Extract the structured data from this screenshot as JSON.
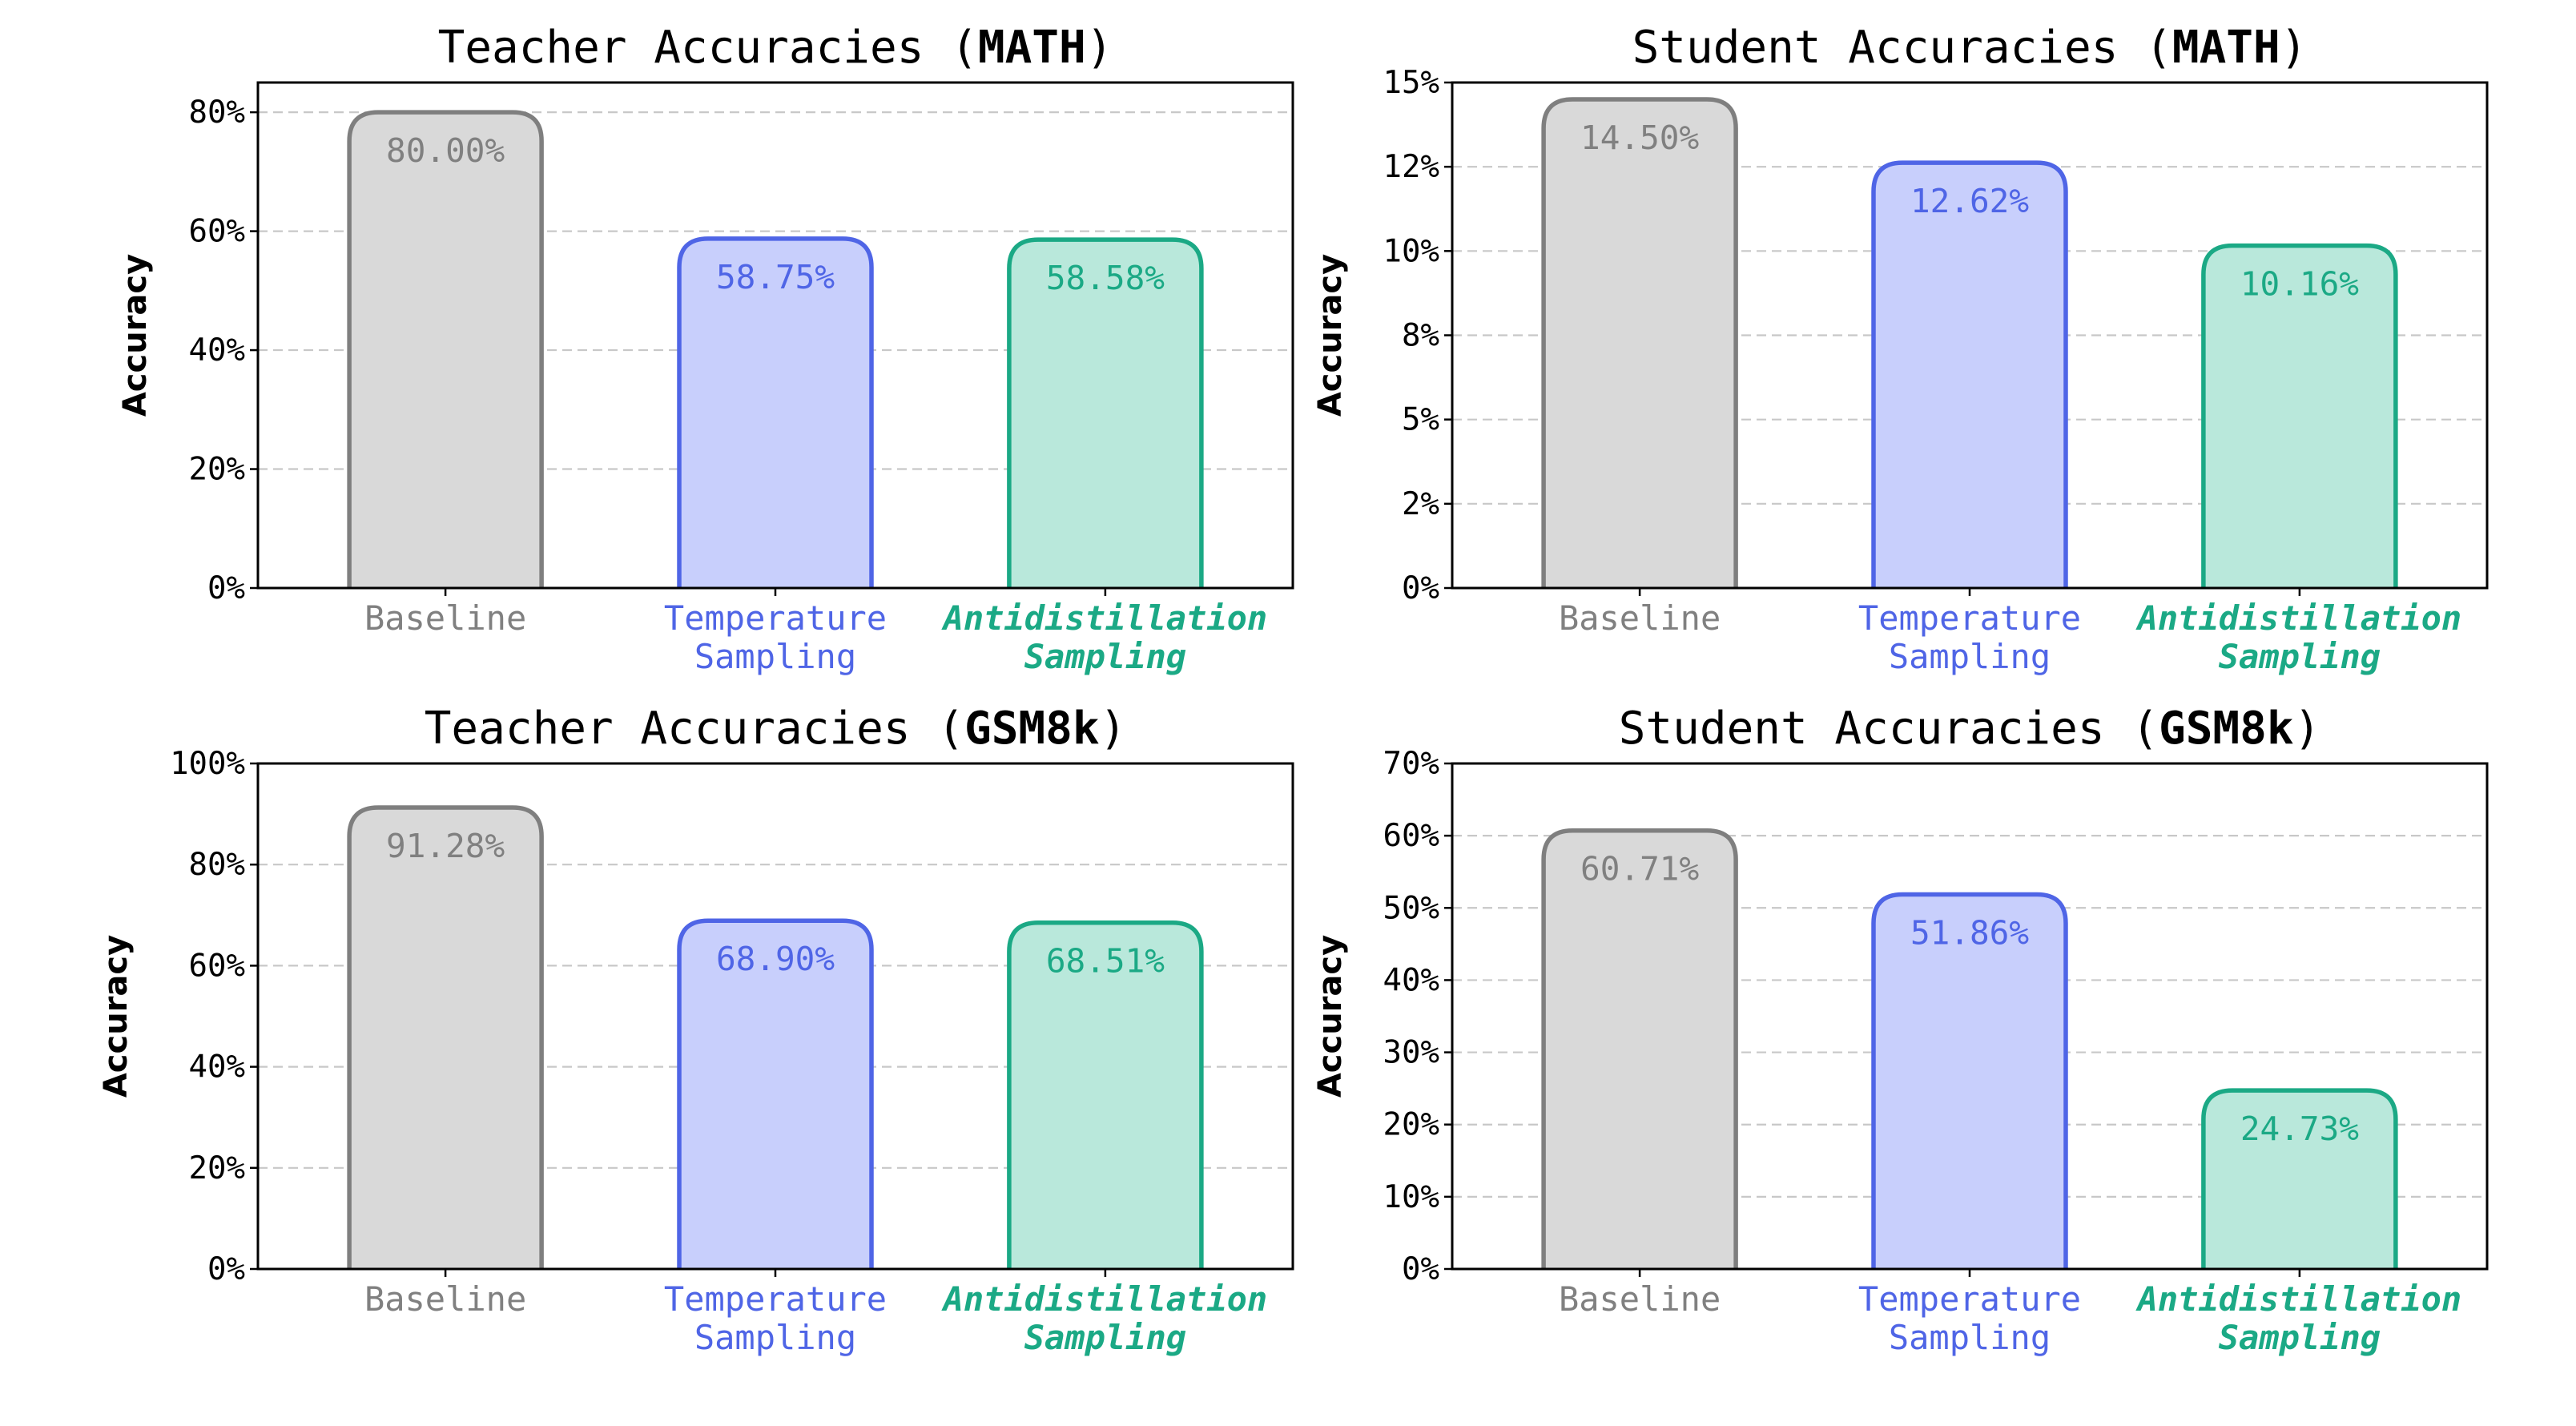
{
  "chart_data": [
    {
      "type": "bar",
      "title_prefix": "Teacher Accuracies (",
      "title_bold": "MATH",
      "title_suffix": ")",
      "ylabel": "Accuracy",
      "ylim": [
        0,
        85
      ],
      "yticks": [
        0,
        20,
        40,
        60,
        80
      ],
      "yticklabels": [
        "0%",
        "20%",
        "40%",
        "60%",
        "80%"
      ],
      "grid": true,
      "categories": [
        {
          "lines": [
            "Baseline"
          ],
          "bold": false
        },
        {
          "lines": [
            "Temperature",
            "Sampling"
          ],
          "bold": false
        },
        {
          "lines": [
            "Antidistillation",
            "Sampling"
          ],
          "bold": true
        }
      ],
      "values": [
        80.0,
        58.75,
        58.58
      ],
      "value_labels": [
        "80.00%",
        "58.75%",
        "58.58%"
      ]
    },
    {
      "type": "bar",
      "title_prefix": "Student Accuracies (",
      "title_bold": "MATH",
      "title_suffix": ")",
      "ylabel": "Accuracy",
      "ylim": [
        0,
        15
      ],
      "yticks": [
        0,
        2.5,
        5,
        7.5,
        10,
        12.5,
        15
      ],
      "yticklabels": [
        "0%",
        "2%",
        "5%",
        "8%",
        "10%",
        "12%",
        "15%"
      ],
      "grid": true,
      "categories": [
        {
          "lines": [
            "Baseline"
          ],
          "bold": false
        },
        {
          "lines": [
            "Temperature",
            "Sampling"
          ],
          "bold": false
        },
        {
          "lines": [
            "Antidistillation",
            "Sampling"
          ],
          "bold": true
        }
      ],
      "values": [
        14.5,
        12.62,
        10.16
      ],
      "value_labels": [
        "14.50%",
        "12.62%",
        "10.16%"
      ]
    },
    {
      "type": "bar",
      "title_prefix": "Teacher Accuracies (",
      "title_bold": "GSM8k",
      "title_suffix": ")",
      "ylabel": "Accuracy",
      "ylim": [
        0,
        100
      ],
      "yticks": [
        0,
        20,
        40,
        60,
        80,
        100
      ],
      "yticklabels": [
        "0%",
        "20%",
        "40%",
        "60%",
        "80%",
        "100%"
      ],
      "grid": true,
      "categories": [
        {
          "lines": [
            "Baseline"
          ],
          "bold": false
        },
        {
          "lines": [
            "Temperature",
            "Sampling"
          ],
          "bold": false
        },
        {
          "lines": [
            "Antidistillation",
            "Sampling"
          ],
          "bold": true
        }
      ],
      "values": [
        91.28,
        68.9,
        68.51
      ],
      "value_labels": [
        "91.28%",
        "68.90%",
        "68.51%"
      ]
    },
    {
      "type": "bar",
      "title_prefix": "Student Accuracies (",
      "title_bold": "GSM8k",
      "title_suffix": ")",
      "ylabel": "Accuracy",
      "ylim": [
        0,
        70
      ],
      "yticks": [
        0,
        10,
        20,
        30,
        40,
        50,
        60,
        70
      ],
      "yticklabels": [
        "0%",
        "10%",
        "20%",
        "30%",
        "40%",
        "50%",
        "60%",
        "70%"
      ],
      "grid": true,
      "categories": [
        {
          "lines": [
            "Baseline"
          ],
          "bold": false
        },
        {
          "lines": [
            "Temperature",
            "Sampling"
          ],
          "bold": false
        },
        {
          "lines": [
            "Antidistillation",
            "Sampling"
          ],
          "bold": true
        }
      ],
      "values": [
        60.71,
        51.86,
        24.73
      ],
      "value_labels": [
        "60.71%",
        "51.86%",
        "24.73%"
      ]
    }
  ],
  "colors": {
    "baseline_fill": "#d9d9d9",
    "baseline_edge": "#7f7f7f",
    "baseline_text": "#808080",
    "temperature_fill": "#c8cffc",
    "temperature_edge": "#4f65e6",
    "temperature_text": "#4f65e6",
    "antidistillation_fill": "#b9e8db",
    "antidistillation_edge": "#1ba985",
    "antidistillation_text": "#1ba985"
  }
}
